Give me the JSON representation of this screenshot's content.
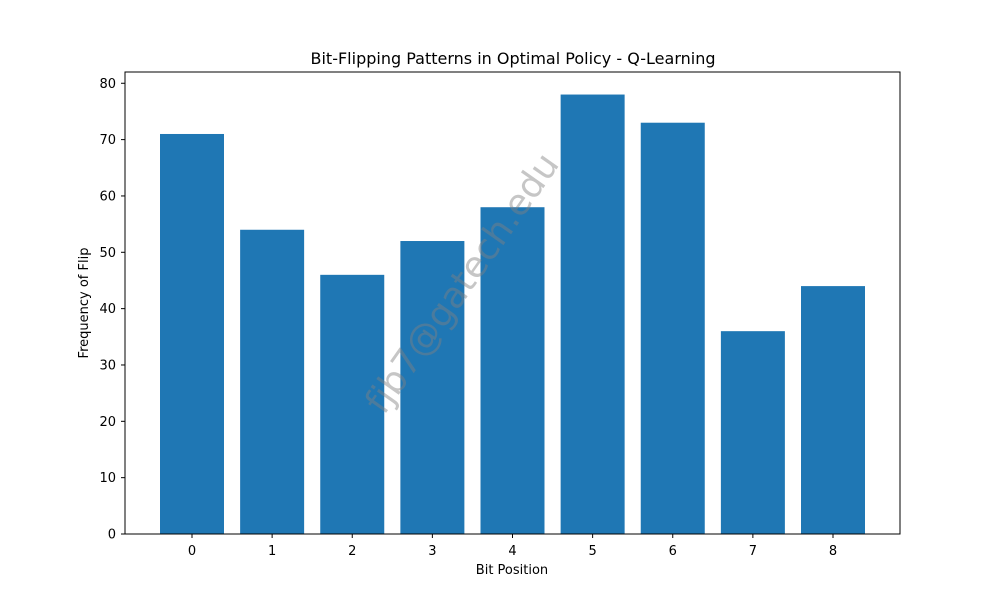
{
  "chart_data": {
    "type": "bar",
    "title": "Bit-Flipping Patterns in Optimal Policy - Q-Learning",
    "xlabel": "Bit Position",
    "ylabel": "Frequency of Flip",
    "categories": [
      "0",
      "1",
      "2",
      "3",
      "4",
      "5",
      "6",
      "7",
      "8"
    ],
    "values": [
      71,
      54,
      46,
      52,
      58,
      78,
      73,
      36,
      44
    ],
    "ylim": [
      0,
      82
    ],
    "yticks": [
      0,
      10,
      20,
      30,
      40,
      50,
      60,
      70,
      80
    ],
    "grid": false,
    "legend": "none",
    "bar_color": "#1f77b4"
  },
  "watermark": {
    "text": "fjb7@gatech.edu"
  }
}
